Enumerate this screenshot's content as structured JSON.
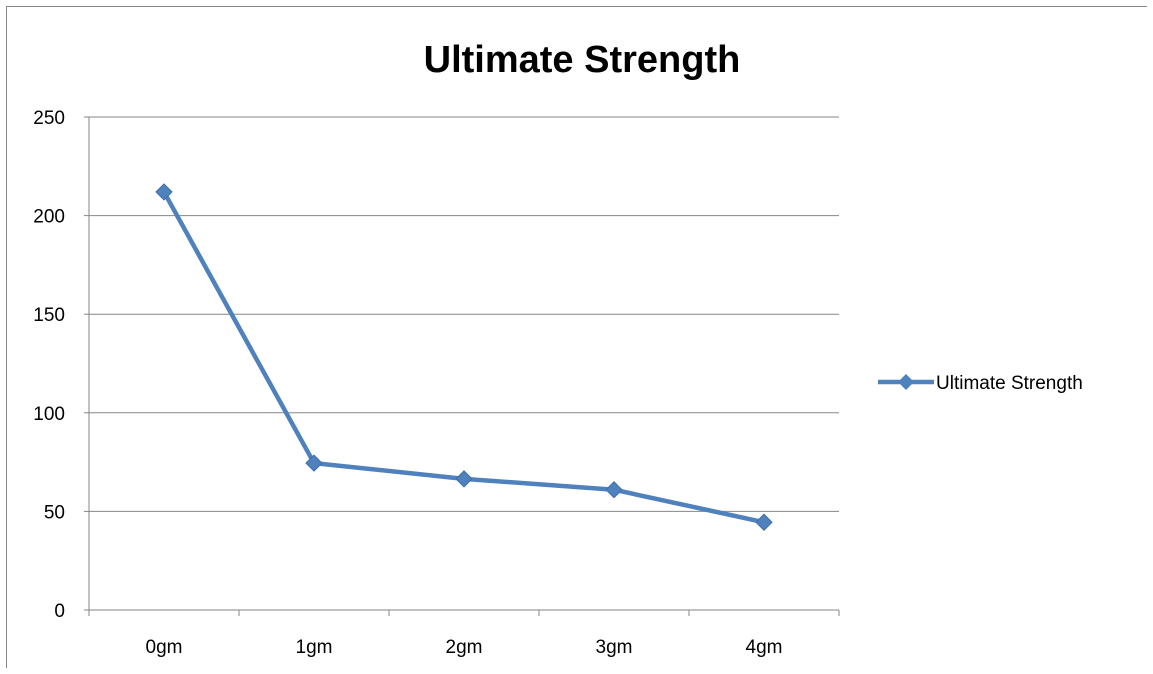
{
  "chart_data": {
    "type": "line",
    "title": "Ultimate Strength",
    "xlabel": "",
    "ylabel": "",
    "categories": [
      "0gm",
      "1gm",
      "2gm",
      "3gm",
      "4gm"
    ],
    "series": [
      {
        "name": "Ultimate Strength",
        "values": [
          212,
          74.5,
          66.5,
          61,
          44.5
        ]
      }
    ],
    "ylim": [
      0,
      250
    ],
    "yticks": [
      "0",
      "50",
      "100",
      "150",
      "200",
      "250"
    ],
    "grid": true,
    "legend": "right",
    "colors": {
      "series": "#4F81BD",
      "grid": "#868686",
      "axis": "#868686"
    },
    "marker": "diamond"
  }
}
